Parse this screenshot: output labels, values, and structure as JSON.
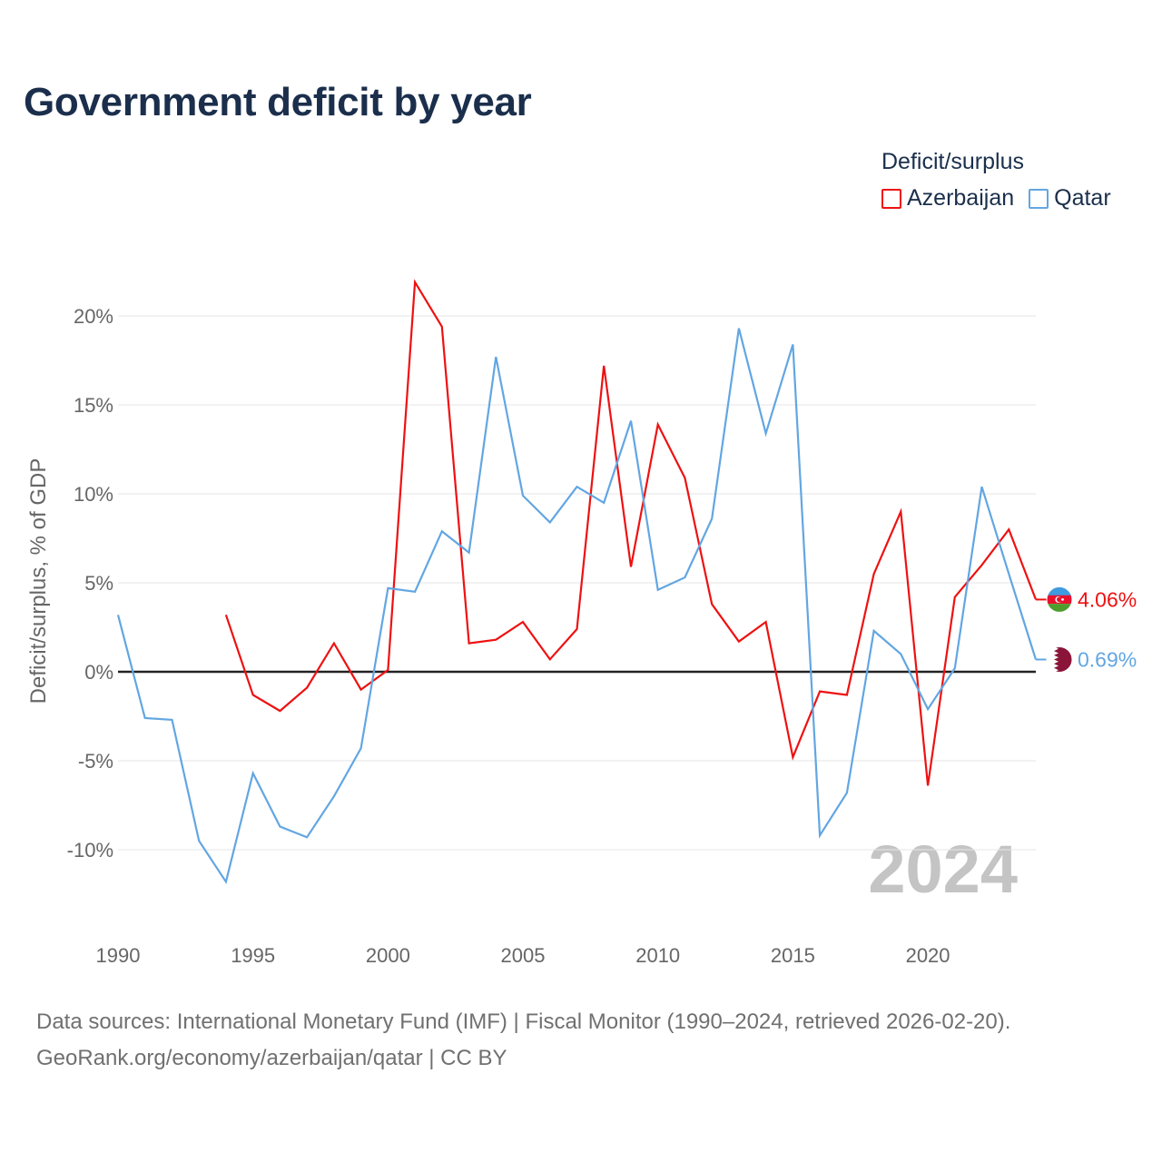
{
  "title": "Government deficit by year",
  "legend": {
    "title": "Deficit/surplus",
    "items": [
      {
        "label": "Azerbaijan",
        "color": "#ee1111"
      },
      {
        "label": "Qatar",
        "color": "#62a6e2"
      }
    ]
  },
  "footer": {
    "line1": "Data sources: International Monetary Fund (IMF) | Fiscal Monitor (1990–2024, retrieved 2026-02-20).",
    "line2": "GeoRank.org/economy/azerbaijan/qatar | CC BY"
  },
  "chart_data": {
    "type": "line",
    "ylabel": "Deficit/surplus, % of GDP",
    "xlim": [
      1990,
      2024
    ],
    "ylim": [
      -13.5,
      24
    ],
    "x_ticks": [
      "1990",
      "1995",
      "2000",
      "2005",
      "2010",
      "2015",
      "2020"
    ],
    "y_ticks": [
      {
        "value": 20,
        "label": "20%"
      },
      {
        "value": 15,
        "label": "15%"
      },
      {
        "value": 10,
        "label": "10%"
      },
      {
        "value": 5,
        "label": "5%"
      },
      {
        "value": 0,
        "label": "0%"
      },
      {
        "value": -5,
        "label": "-5%"
      },
      {
        "value": -10,
        "label": "-10%"
      }
    ],
    "watermark_year": "2024",
    "series": [
      {
        "name": "Azerbaijan",
        "color": "#ee1111",
        "end_label": "4.06%",
        "flag": "azerbaijan-flag",
        "x": [
          1994,
          1995,
          1996,
          1997,
          1998,
          1999,
          2000,
          2001,
          2002,
          2003,
          2004,
          2005,
          2006,
          2007,
          2008,
          2009,
          2010,
          2011,
          2012,
          2013,
          2014,
          2015,
          2016,
          2017,
          2018,
          2019,
          2020,
          2021,
          2022,
          2023,
          2024
        ],
        "values": [
          3.2,
          -1.3,
          -2.2,
          -0.9,
          1.6,
          -1.0,
          0.1,
          21.9,
          19.4,
          1.6,
          1.8,
          2.8,
          0.7,
          2.4,
          17.2,
          5.9,
          13.9,
          10.9,
          3.8,
          1.7,
          2.8,
          -4.8,
          -1.1,
          -1.3,
          5.5,
          9.0,
          -6.4,
          4.2,
          6.0,
          8.0,
          4.06
        ]
      },
      {
        "name": "Qatar",
        "color": "#62a6e2",
        "end_label": "0.69%",
        "flag": "qatar-flag",
        "x": [
          1990,
          1991,
          1992,
          1993,
          1994,
          1995,
          1996,
          1997,
          1998,
          1999,
          2000,
          2001,
          2002,
          2003,
          2004,
          2005,
          2006,
          2007,
          2008,
          2009,
          2010,
          2011,
          2012,
          2013,
          2014,
          2015,
          2016,
          2017,
          2018,
          2019,
          2020,
          2021,
          2022,
          2023,
          2024
        ],
        "values": [
          3.2,
          -2.6,
          -2.7,
          -9.5,
          -11.8,
          -5.7,
          -8.7,
          -9.3,
          -7.0,
          -4.3,
          4.7,
          4.5,
          7.9,
          6.7,
          17.7,
          9.9,
          8.4,
          10.4,
          9.5,
          14.1,
          4.6,
          5.3,
          8.6,
          19.3,
          13.4,
          18.4,
          -9.2,
          -6.8,
          2.3,
          1.0,
          -2.1,
          0.2,
          10.4,
          5.5,
          0.69
        ]
      }
    ]
  }
}
